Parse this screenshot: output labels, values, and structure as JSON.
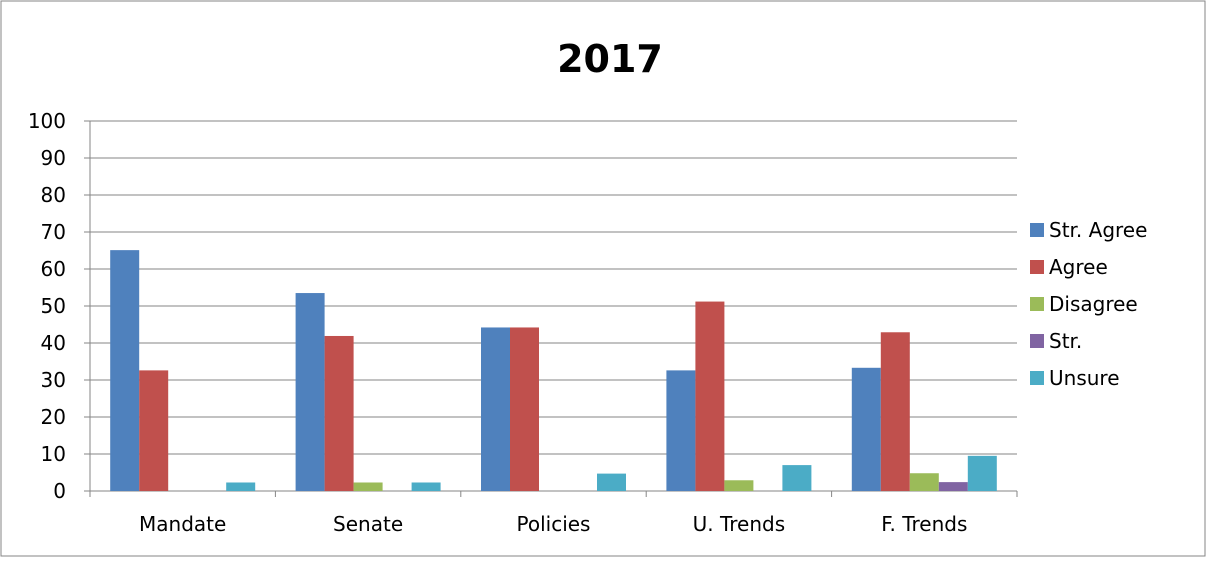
{
  "chart_data": {
    "type": "bar",
    "title": "2017",
    "xlabel": "",
    "ylabel": "",
    "categories": [
      "Mandate",
      "Senate",
      "Policies",
      "U. Trends",
      "F. Trends"
    ],
    "series": [
      {
        "name": "Str. Agree",
        "color": "#4F81BD",
        "values": [
          65.1,
          53.5,
          44.2,
          32.6,
          33.3
        ]
      },
      {
        "name": "Agree",
        "color": "#C0504D",
        "values": [
          32.6,
          41.9,
          44.2,
          51.2,
          42.9
        ]
      },
      {
        "name": "Disagree",
        "color": "#9BBB59",
        "values": [
          0,
          2.3,
          0,
          2.9,
          4.8
        ]
      },
      {
        "name": "Str.",
        "color": "#8064A2",
        "values": [
          0,
          0,
          0,
          0,
          2.4
        ]
      },
      {
        "name": "Unsure",
        "color": "#4BACC6",
        "values": [
          2.3,
          2.3,
          4.7,
          7.0,
          9.5
        ]
      }
    ],
    "ylim": [
      0,
      100
    ],
    "yticks": [
      0,
      10,
      20,
      30,
      40,
      50,
      60,
      70,
      80,
      90,
      100
    ],
    "grid": true,
    "legend": "right"
  }
}
